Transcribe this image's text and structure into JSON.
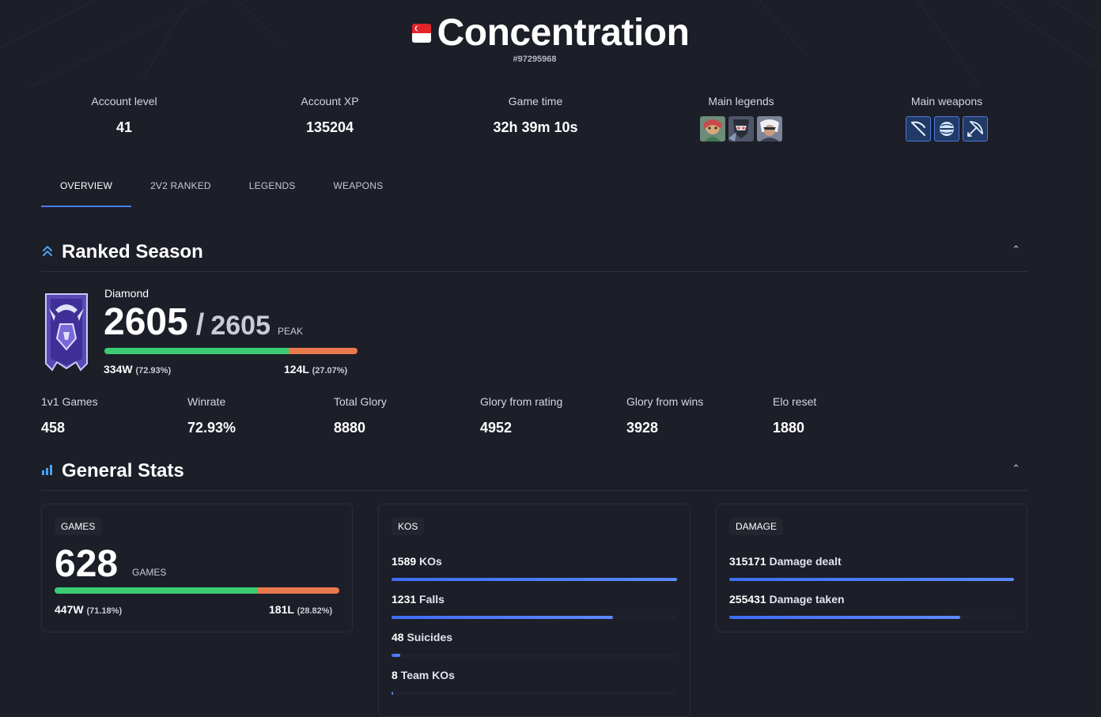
{
  "player": {
    "name": "Concentration",
    "id": "#97295968",
    "flag_icon": "singapore-flag-icon"
  },
  "summary": {
    "account_level_label": "Account level",
    "account_level": "41",
    "account_xp_label": "Account XP",
    "account_xp": "135204",
    "game_time_label": "Game time",
    "game_time": "32h 39m 10s",
    "main_legends_label": "Main legends",
    "main_legends_icons": [
      "legend-portrait-1",
      "legend-portrait-2",
      "legend-portrait-3"
    ],
    "main_weapons_label": "Main weapons",
    "main_weapons_icons": [
      "scythe-icon",
      "orb-icon",
      "bow-icon"
    ]
  },
  "tabs": [
    "OVERVIEW",
    "2V2 RANKED",
    "LEGENDS",
    "WEAPONS"
  ],
  "active_tab": "OVERVIEW",
  "ranked": {
    "section_title": "Ranked Season",
    "section_icon": "double-chevron-up-icon",
    "tier": "Diamond",
    "rating": "2605",
    "slash": "/",
    "peak_rating": "2605",
    "peak_label": "PEAK",
    "wins": "334W",
    "wins_pct": "(72.93%)",
    "losses": "124L",
    "losses_pct": "(27.07%)",
    "win_fraction": 0.7293,
    "stats": [
      {
        "label": "1v1 Games",
        "value": "458"
      },
      {
        "label": "Winrate",
        "value": "72.93%"
      },
      {
        "label": "Total Glory",
        "value": "8880"
      },
      {
        "label": "Glory from rating",
        "value": "4952"
      },
      {
        "label": "Glory from wins",
        "value": "3928"
      },
      {
        "label": "Elo reset",
        "value": "1880"
      }
    ]
  },
  "general": {
    "section_title": "General Stats",
    "section_icon": "bar-chart-icon",
    "games": {
      "tag": "GAMES",
      "count": "628",
      "count_label": "GAMES",
      "wins": "447W",
      "wins_pct": "(71.18%)",
      "losses": "181L",
      "losses_pct": "(28.82%)",
      "win_fraction": 0.7118
    },
    "kos": {
      "tag": "KOS",
      "rows": [
        {
          "value": "1589",
          "label": "KOs",
          "fraction": 1.0
        },
        {
          "value": "1231",
          "label": "Falls",
          "fraction": 0.775
        },
        {
          "value": "48",
          "label": "Suicides",
          "fraction": 0.03
        },
        {
          "value": "8",
          "label": "Team KOs",
          "fraction": 0.005
        }
      ]
    },
    "damage": {
      "tag": "DAMAGE",
      "rows": [
        {
          "value": "315171",
          "label": "Damage dealt",
          "fraction": 1.0
        },
        {
          "value": "255431",
          "label": "Damage taken",
          "fraction": 0.81
        }
      ]
    }
  },
  "colors": {
    "background": "#1c1e28",
    "accent": "#4a7dfc",
    "win": "#3ccd74",
    "loss": "#e9784d"
  }
}
